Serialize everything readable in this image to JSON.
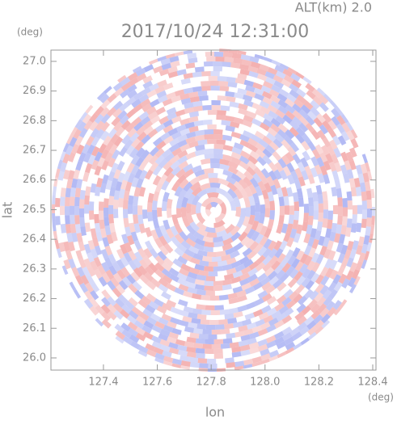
{
  "chart_data": {
    "type": "radar-ppi",
    "title": "2017/10/24 12:31:00",
    "subtitle": "ALT(km) 2.0",
    "x_label": "lon",
    "y_label": "lat",
    "x_unit": "(deg)",
    "y_unit": "(deg)",
    "xlim": [
      127.205,
      128.412
    ],
    "ylim": [
      25.959,
      27.038
    ],
    "xticks": [
      127.4,
      127.6,
      127.8,
      {
        "value": 128.0,
        "label": "128.0"
      },
      128.2,
      128.4
    ],
    "yticks": [
      {
        "value": 26.0,
        "label": "26.0"
      },
      26.1,
      26.2,
      26.3,
      26.4,
      26.5,
      26.6,
      26.7,
      26.8,
      26.9,
      {
        "value": 27.0,
        "label": "27.0"
      }
    ]
  }
}
